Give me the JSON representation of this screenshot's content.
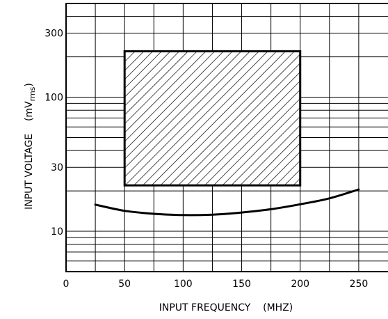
{
  "chart_data": {
    "type": "line",
    "title": "",
    "xlabel": "INPUT FREQUENCY    (MHZ)",
    "ylabel": {
      "main": "INPUT VOLTAGE    (mV",
      "sub": "rms",
      "close": ")"
    },
    "xscale": "linear",
    "yscale": "log",
    "xlim": [
      0,
      275
    ],
    "ylim": [
      5,
      500
    ],
    "grid": true,
    "x_ticks": [
      {
        "value": 0,
        "label": "0"
      },
      {
        "value": 50,
        "label": "50"
      },
      {
        "value": 100,
        "label": "100"
      },
      {
        "value": 150,
        "label": "150"
      },
      {
        "value": 200,
        "label": "200"
      },
      {
        "value": 250,
        "label": "250"
      }
    ],
    "y_ticks": [
      {
        "value": 10,
        "label": "10"
      },
      {
        "value": 30,
        "label": "30"
      },
      {
        "value": 100,
        "label": "100"
      },
      {
        "value": 300,
        "label": "300"
      }
    ],
    "x_gridlines": [
      25,
      50,
      75,
      100,
      125,
      150,
      175,
      200,
      225,
      250
    ],
    "y_gridlines": [
      6,
      7,
      8,
      9,
      10,
      20,
      30,
      40,
      50,
      60,
      70,
      80,
      90,
      100,
      200,
      300,
      400
    ],
    "operating_region": {
      "x": [
        50,
        200
      ],
      "y": [
        22,
        220
      ],
      "fill": "hatched"
    },
    "series": [
      {
        "x": [
          25,
          50,
          75,
          100,
          125,
          150,
          175,
          200,
          225,
          250
        ],
        "y": [
          15.8,
          14.2,
          13.5,
          13.2,
          13.3,
          13.8,
          14.6,
          15.9,
          17.6,
          20.5
        ]
      }
    ]
  }
}
